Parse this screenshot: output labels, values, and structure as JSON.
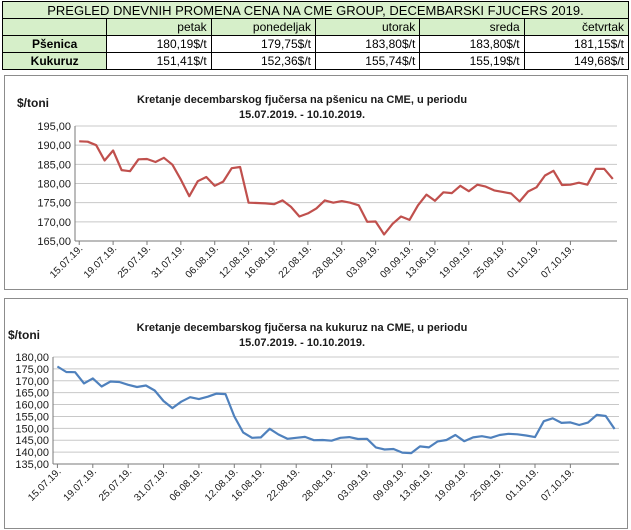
{
  "table": {
    "title": "PREGLED DNEVNIH PROMENA CENA NA CME GROUP, DECEMBARSKI  FJUCERS 2019.",
    "days": [
      "petak",
      "ponedeljak",
      "utorak",
      "sreda",
      "četvrtak"
    ],
    "rows": [
      {
        "label": "Pšenica",
        "values": [
          "180,19$/t",
          "179,75$/t",
          "183,80$/t",
          "183,80$/t",
          "181,15$/t"
        ]
      },
      {
        "label": "Kukuruz",
        "values": [
          "151,41$/t",
          "152,36$/t",
          "155,74$/t",
          "155,19$/t",
          "149,68$/t"
        ]
      }
    ]
  },
  "chart_data": [
    {
      "type": "line",
      "title": [
        "Kretanje decembarskog fjučersa na  pšenicu na CME, u periodu",
        "15.07.2019. - 10.10.2019."
      ],
      "ylabel": "$/toni",
      "xlabel": "",
      "ylim": [
        165,
        195
      ],
      "yticks": [
        "195,00",
        "190,00",
        "185,00",
        "180,00",
        "175,00",
        "170,00",
        "165,00"
      ],
      "xtick_labels": [
        "15.07.19.",
        "19.07.19.",
        "25.07.19.",
        "31.07.19.",
        "06.08.19.",
        "12.08.19.",
        "16.08.19.",
        "22.08.19.",
        "28.08.19.",
        "03.09.19.",
        "09.09.19.",
        "13.06.19.",
        "19.09.19.",
        "25.09.19.",
        "01.10.19.",
        "07.10.19."
      ],
      "grid": true,
      "color": "#c0504d",
      "values": [
        191.0,
        190.9,
        190.0,
        186.0,
        188.6,
        183.5,
        183.2,
        186.3,
        186.4,
        185.6,
        186.7,
        184.9,
        181.0,
        176.7,
        180.6,
        181.7,
        179.4,
        180.5,
        184.0,
        184.3,
        175.0,
        174.9,
        174.8,
        174.6,
        175.6,
        173.9,
        171.4,
        172.2,
        173.5,
        175.6,
        175.0,
        175.4,
        175.0,
        174.3,
        170.0,
        170.1,
        166.7,
        169.5,
        171.4,
        170.5,
        174.3,
        177.1,
        175.5,
        177.7,
        177.5,
        179.4,
        178.0,
        179.7,
        179.2,
        178.2,
        177.8,
        177.4,
        175.3,
        177.9,
        179.0,
        182.1,
        183.3,
        179.6,
        179.7,
        180.2,
        179.7,
        183.8,
        183.8,
        181.2
      ]
    },
    {
      "type": "line",
      "title": [
        "Kretanje decembarskog fjučersa na  kukuruz na CME, u periodu",
        "15.07.2019. - 10.10.2019."
      ],
      "ylabel": "$/toni",
      "xlabel": "",
      "ylim": [
        135,
        180
      ],
      "yticks": [
        "180,00",
        "175,00",
        "170,00",
        "165,00",
        "160,00",
        "155,00",
        "150,00",
        "145,00",
        "140,00",
        "135,00"
      ],
      "xtick_labels": [
        "15.07.19.",
        "19.07.19.",
        "25.07.19.",
        "31.07.19.",
        "06.08.19.",
        "12.08.19.",
        "16.08.19.",
        "22.08.19.",
        "28.08.19.",
        "03.09.19.",
        "09.09.19.",
        "13.06.19.",
        "19.09.19.",
        "25.09.19.",
        "01.10.19.",
        "07.10.19."
      ],
      "grid": true,
      "color": "#4f81bd",
      "values": [
        176.0,
        173.7,
        173.6,
        168.9,
        171.0,
        167.6,
        169.7,
        169.5,
        168.3,
        167.4,
        168.0,
        165.9,
        161.5,
        158.5,
        161.2,
        163.1,
        162.3,
        163.3,
        164.6,
        164.4,
        155.0,
        148.3,
        146.0,
        146.2,
        149.8,
        147.4,
        145.6,
        146.0,
        146.4,
        145.0,
        145.1,
        144.8,
        146.0,
        146.3,
        145.5,
        145.6,
        142.0,
        141.1,
        141.3,
        139.8,
        139.6,
        142.4,
        142.0,
        144.5,
        145.1,
        147.2,
        144.6,
        146.2,
        146.7,
        146.0,
        147.2,
        147.7,
        147.5,
        147.0,
        146.3,
        153.0,
        154.2,
        152.3,
        152.5,
        151.4,
        152.4,
        155.7,
        155.2,
        149.7
      ]
    }
  ]
}
